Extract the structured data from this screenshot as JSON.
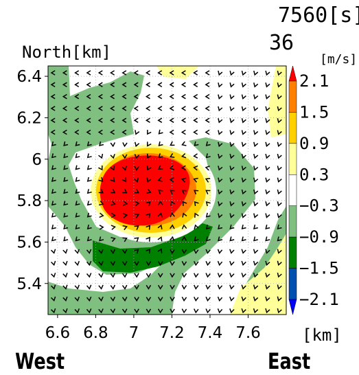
{
  "header": {
    "time": "7560[s]",
    "frame": "36"
  },
  "direction_labels": {
    "west": "West",
    "east": "East"
  },
  "colorbar": {
    "unit": "[m/s]",
    "levels": [
      "2.1",
      "1.5",
      "0.9",
      "0.3",
      "−0.3",
      "−0.9",
      "−1.5",
      "−2.1"
    ],
    "colors": [
      "#ff0000",
      "#ff8000",
      "#ffd000",
      "#ffff99",
      "#ffffff",
      "#7fbf7f",
      "#008000",
      "#0050b0",
      "#0000ff"
    ]
  },
  "chart_data": {
    "type": "heatmap",
    "title": "",
    "xlabel": "[km]",
    "ylabel": "North[km]",
    "xlim": [
      6.55,
      7.8
    ],
    "ylim": [
      5.25,
      6.45
    ],
    "x_ticks": [
      "6.6",
      "6.8",
      "7",
      "7.2",
      "7.4",
      "7.6"
    ],
    "x_tick_values": [
      6.6,
      6.8,
      7.0,
      7.2,
      7.4,
      7.6
    ],
    "y_ticks": [
      "5.4",
      "5.6",
      "5.8",
      "6",
      "6.2",
      "6.4"
    ],
    "y_tick_values": [
      5.4,
      5.6,
      5.8,
      6.0,
      6.2,
      6.4
    ],
    "grid": true,
    "field": "vertical velocity contours with horizontal wind vectors",
    "features": [
      {
        "kind": "positive_maximum",
        "center": [
          6.98,
          5.83
        ],
        "value_range": "> 2.1"
      },
      {
        "kind": "negative_band",
        "description": "green band wrapping south and west of updraft",
        "value_range": "-1.5 to -0.3"
      },
      {
        "kind": "weak_positive",
        "description": "yellow strip along east edge",
        "value_range": "0.3 to 0.9"
      }
    ]
  }
}
